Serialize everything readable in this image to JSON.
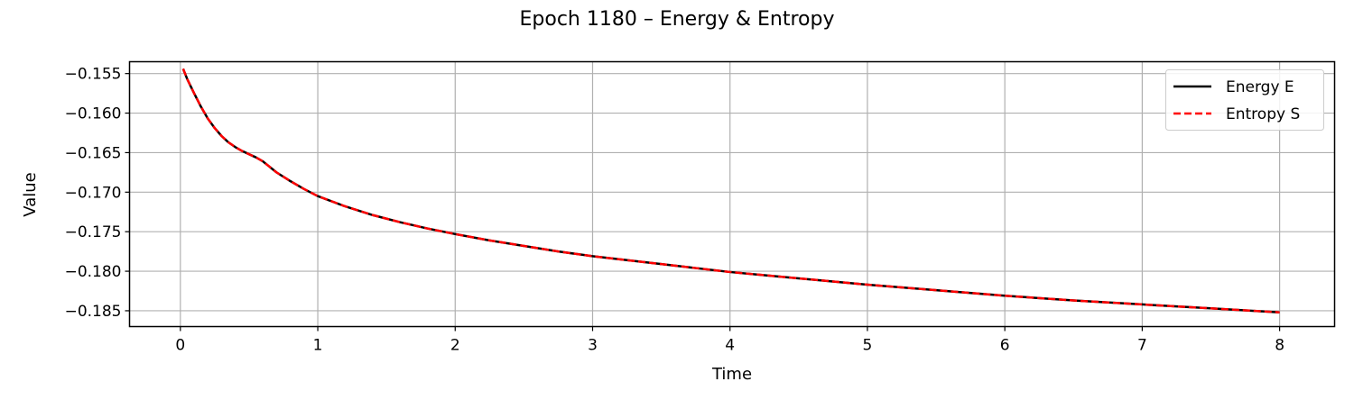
{
  "chart_data": {
    "type": "line",
    "title": "Epoch 1180 – Energy & Entropy",
    "xlabel": "Time",
    "ylabel": "Value",
    "xlim": [
      -0.37,
      8.4
    ],
    "ylim": [
      -0.187,
      -0.1535
    ],
    "grid": true,
    "legend_position": "top-right",
    "x_ticks": [
      0,
      1,
      2,
      3,
      4,
      5,
      6,
      7,
      8
    ],
    "x_tick_labels": [
      "0",
      "1",
      "2",
      "3",
      "4",
      "5",
      "6",
      "7",
      "8"
    ],
    "y_ticks": [
      -0.155,
      -0.16,
      -0.165,
      -0.17,
      -0.175,
      -0.18,
      -0.185
    ],
    "y_tick_labels": [
      "−0.155",
      "−0.160",
      "−0.165",
      "−0.170",
      "−0.175",
      "−0.180",
      "−0.185"
    ],
    "x": [
      0.02,
      0.05,
      0.1,
      0.15,
      0.2,
      0.25,
      0.3,
      0.35,
      0.4,
      0.45,
      0.5,
      0.55,
      0.6,
      0.7,
      0.8,
      0.9,
      1.0,
      1.2,
      1.4,
      1.6,
      1.8,
      2.0,
      2.25,
      2.5,
      2.75,
      3.0,
      3.25,
      3.5,
      3.75,
      4.0,
      4.25,
      4.5,
      4.75,
      5.0,
      5.5,
      6.0,
      6.5,
      7.0,
      7.5,
      8.0
    ],
    "series": [
      {
        "name": "Energy E",
        "color": "#000000",
        "style": "solid",
        "values": [
          -0.1544,
          -0.1557,
          -0.1575,
          -0.1592,
          -0.1607,
          -0.1619,
          -0.1629,
          -0.1637,
          -0.1643,
          -0.1648,
          -0.1652,
          -0.1656,
          -0.1661,
          -0.1675,
          -0.1686,
          -0.1696,
          -0.1705,
          -0.1718,
          -0.1729,
          -0.1738,
          -0.1746,
          -0.1753,
          -0.1761,
          -0.1768,
          -0.1775,
          -0.1781,
          -0.1786,
          -0.1791,
          -0.1796,
          -0.1801,
          -0.1805,
          -0.1809,
          -0.1813,
          -0.1817,
          -0.1824,
          -0.1831,
          -0.1837,
          -0.1842,
          -0.1847,
          -0.1852
        ]
      },
      {
        "name": "Entropy S",
        "color": "#ff0000",
        "style": "dashed",
        "values": [
          -0.1544,
          -0.1557,
          -0.1575,
          -0.1592,
          -0.1607,
          -0.1619,
          -0.1629,
          -0.1637,
          -0.1643,
          -0.1648,
          -0.1652,
          -0.1656,
          -0.1661,
          -0.1675,
          -0.1686,
          -0.1696,
          -0.1705,
          -0.1718,
          -0.1729,
          -0.1738,
          -0.1746,
          -0.1753,
          -0.1761,
          -0.1768,
          -0.1775,
          -0.1781,
          -0.1786,
          -0.1791,
          -0.1796,
          -0.1801,
          -0.1805,
          -0.1809,
          -0.1813,
          -0.1817,
          -0.1824,
          -0.1831,
          -0.1837,
          -0.1842,
          -0.1847,
          -0.1852
        ]
      }
    ]
  }
}
